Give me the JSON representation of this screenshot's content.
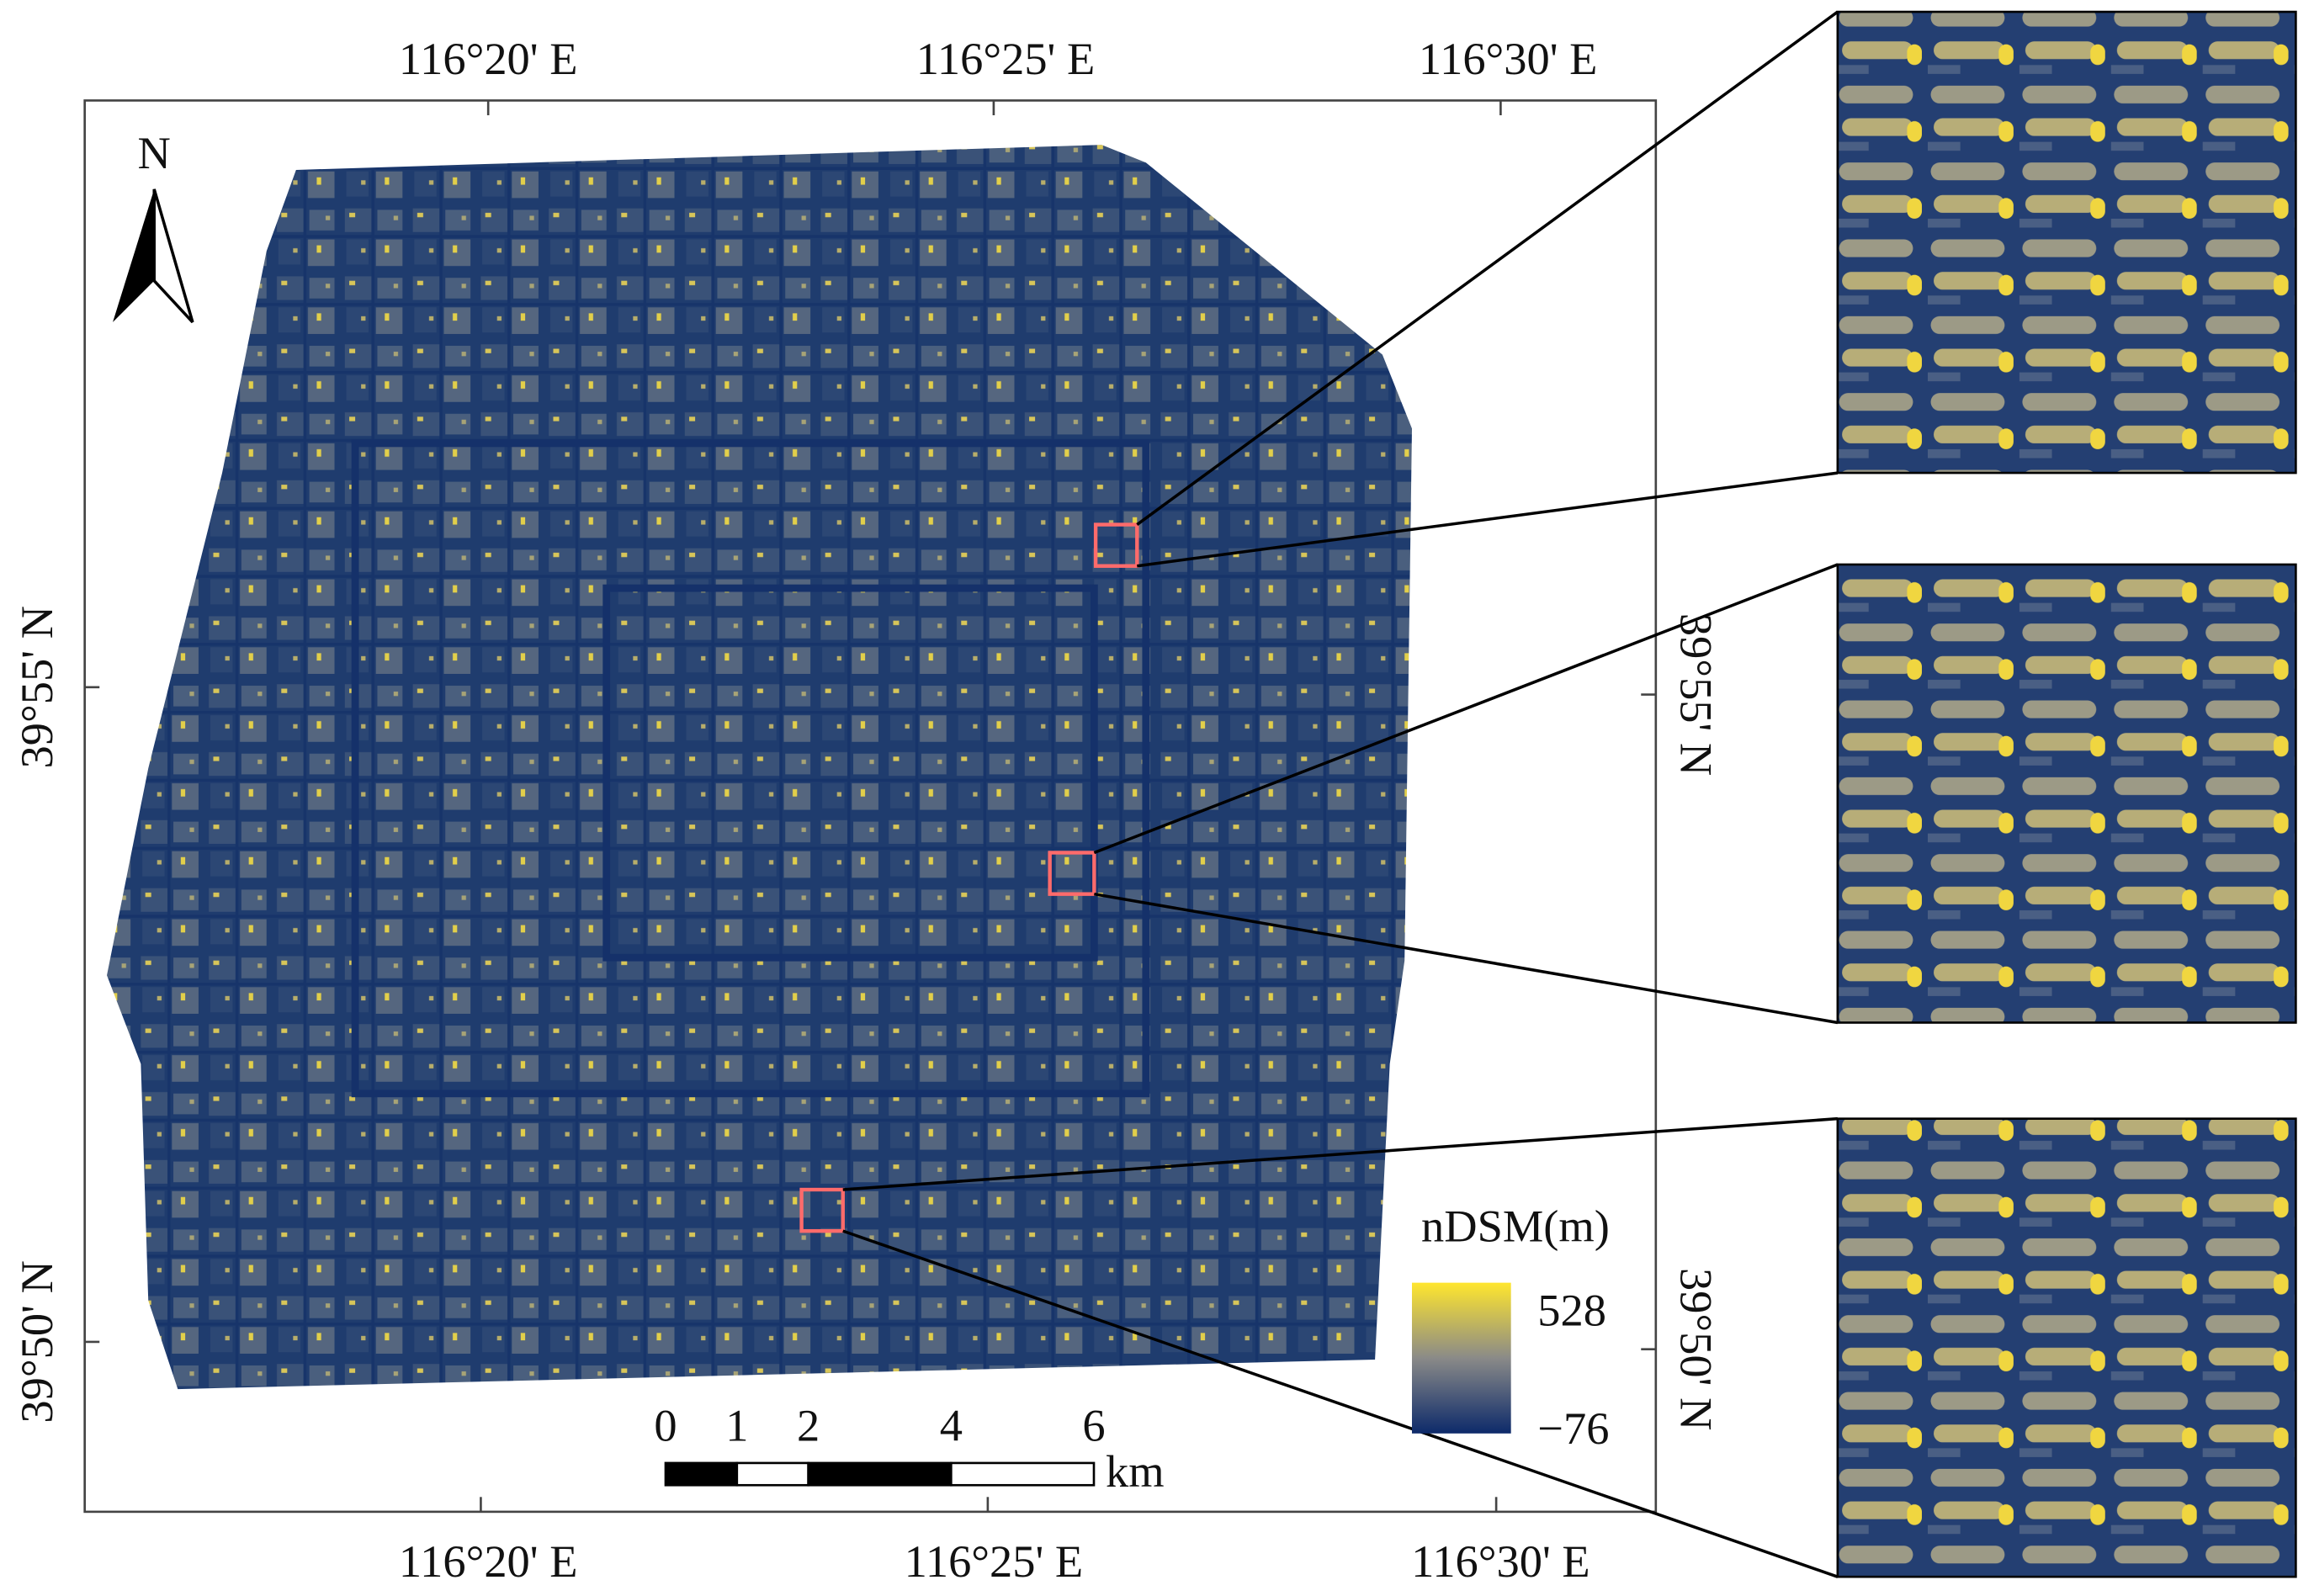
{
  "map": {
    "north_label": "N",
    "top_ticks": [
      "116°20' E",
      "116°25' E",
      "116°30' E"
    ],
    "bottom_ticks": [
      "116°20' E",
      "116°25' E",
      "116°30' E"
    ],
    "left_ticks": [
      "39°55' N",
      "39°50' N"
    ],
    "right_ticks": [
      "39°55' N",
      "39°50' N"
    ],
    "legend": {
      "title": "nDSM(m)",
      "max_label": "528",
      "min_label": "−76"
    },
    "scale_bar": {
      "ticks": [
        0,
        1,
        2,
        4,
        6
      ],
      "unit": "km"
    }
  }
}
